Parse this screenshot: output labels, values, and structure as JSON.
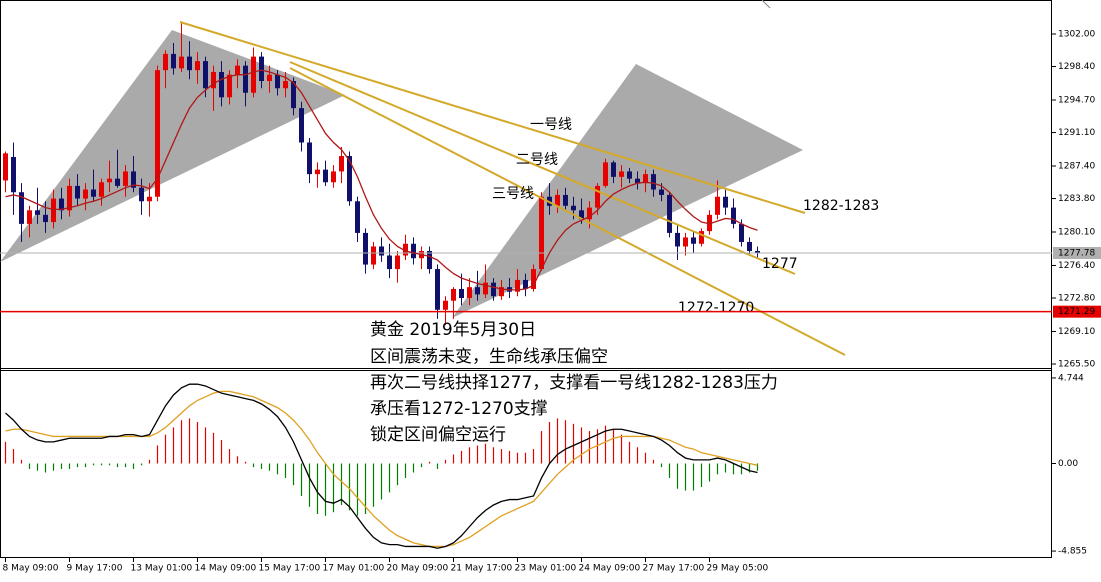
{
  "chart_data": [
    {
      "type": "candlestick",
      "categories": [
        "8 May 09:00",
        null,
        null,
        null,
        null,
        null,
        null,
        null,
        "9 May 17:00",
        null,
        null,
        null,
        null,
        null,
        null,
        null,
        "13 May 01:00",
        null,
        null,
        null,
        null,
        null,
        null,
        null,
        "14 May 09:00",
        null,
        null,
        null,
        null,
        null,
        null,
        null,
        "15 May 17:00",
        null,
        null,
        null,
        null,
        null,
        null,
        null,
        "17 May 01:00",
        null,
        null,
        null,
        null,
        null,
        null,
        null,
        "20 May 09:00",
        null,
        null,
        null,
        null,
        null,
        null,
        null,
        "21 May 17:00",
        null,
        null,
        null,
        null,
        null,
        null,
        null,
        "23 May 01:00",
        null,
        null,
        null,
        null,
        null,
        null,
        null,
        "24 May 09:00",
        null,
        null,
        null,
        null,
        null,
        null,
        null,
        "27 May 17:00",
        null,
        null,
        null,
        null,
        null,
        null,
        null,
        "29 May 05:00",
        null,
        null,
        null,
        null,
        null,
        null
      ],
      "candles": [
        [
          1285.8,
          1289.0,
          1284.5,
          1288.8
        ],
        [
          1288.4,
          1290.0,
          1282.0,
          1284.5
        ],
        [
          1284.5,
          1285.5,
          1279.0,
          1281.0
        ],
        [
          1281.0,
          1283.0,
          1279.5,
          1282.5
        ],
        [
          1282.5,
          1285.0,
          1281.0,
          1282.0
        ],
        [
          1282.0,
          1283.5,
          1280.0,
          1281.2
        ],
        [
          1281.2,
          1284.8,
          1280.5,
          1283.8
        ],
        [
          1283.8,
          1285.0,
          1281.5,
          1282.5
        ],
        [
          1282.5,
          1286.0,
          1281.8,
          1285.2
        ],
        [
          1285.2,
          1286.5,
          1283.0,
          1283.8
        ],
        [
          1283.8,
          1285.5,
          1282.5,
          1284.8
        ],
        [
          1284.8,
          1287.0,
          1283.5,
          1284.0
        ],
        [
          1284.0,
          1286.0,
          1283.0,
          1285.6
        ],
        [
          1285.6,
          1288.0,
          1284.5,
          1286.0
        ],
        [
          1286.0,
          1289.2,
          1285.0,
          1285.2
        ],
        [
          1285.2,
          1287.5,
          1284.0,
          1286.8
        ],
        [
          1286.8,
          1288.5,
          1284.5,
          1285.0
        ],
        [
          1285.0,
          1286.0,
          1282.0,
          1283.5
        ],
        [
          1283.5,
          1285.5,
          1281.8,
          1284.0
        ],
        [
          1284.0,
          1298.5,
          1283.5,
          1298.0
        ],
        [
          1298.0,
          1300.2,
          1296.0,
          1299.8
        ],
        [
          1299.8,
          1301.0,
          1297.5,
          1298.2
        ],
        [
          1298.2,
          1303.3,
          1297.8,
          1299.5
        ],
        [
          1299.5,
          1301.2,
          1297.0,
          1298.0
        ],
        [
          1298.0,
          1300.0,
          1296.5,
          1299.0
        ],
        [
          1299.0,
          1299.5,
          1295.0,
          1296.0
        ],
        [
          1296.0,
          1298.5,
          1293.5,
          1297.8
        ],
        [
          1297.8,
          1299.0,
          1294.0,
          1295.0
        ],
        [
          1295.0,
          1298.0,
          1294.2,
          1297.5
        ],
        [
          1297.5,
          1299.2,
          1296.0,
          1298.5
        ],
        [
          1298.5,
          1299.0,
          1294.0,
          1295.5
        ],
        [
          1295.5,
          1300.5,
          1295.0,
          1299.5
        ],
        [
          1299.5,
          1300.0,
          1296.0,
          1296.8
        ],
        [
          1296.8,
          1298.5,
          1295.5,
          1297.5
        ],
        [
          1297.5,
          1298.0,
          1295.2,
          1296.0
        ],
        [
          1296.0,
          1297.8,
          1295.0,
          1296.8
        ],
        [
          1296.8,
          1297.2,
          1293.0,
          1293.8
        ],
        [
          1293.8,
          1294.5,
          1289.0,
          1290.0
        ],
        [
          1290.0,
          1290.5,
          1285.5,
          1286.5
        ],
        [
          1286.5,
          1287.8,
          1285.0,
          1287.0
        ],
        [
          1287.0,
          1288.0,
          1285.2,
          1285.6
        ],
        [
          1285.6,
          1287.5,
          1285.0,
          1286.8
        ],
        [
          1286.8,
          1289.5,
          1285.5,
          1288.5
        ],
        [
          1288.5,
          1289.0,
          1283.0,
          1283.5
        ],
        [
          1283.5,
          1284.0,
          1279.0,
          1280.0
        ],
        [
          1280.0,
          1280.5,
          1275.5,
          1276.5
        ],
        [
          1276.5,
          1279.0,
          1276.0,
          1278.5
        ],
        [
          1278.5,
          1279.5,
          1276.8,
          1277.5
        ],
        [
          1277.5,
          1278.8,
          1275.0,
          1276.0
        ],
        [
          1276.0,
          1278.0,
          1274.5,
          1277.5
        ],
        [
          1277.5,
          1279.8,
          1277.0,
          1278.8
        ],
        [
          1278.8,
          1279.5,
          1276.5,
          1277.2
        ],
        [
          1277.2,
          1278.5,
          1276.0,
          1278.0
        ],
        [
          1278.0,
          1278.5,
          1275.5,
          1276.0
        ],
        [
          1276.0,
          1276.5,
          1270.5,
          1271.5
        ],
        [
          1271.5,
          1273.0,
          1269.8,
          1272.5
        ],
        [
          1272.5,
          1274.0,
          1270.5,
          1273.8
        ],
        [
          1273.8,
          1275.5,
          1272.0,
          1272.8
        ],
        [
          1272.8,
          1275.0,
          1272.0,
          1274.0
        ],
        [
          1274.0,
          1275.8,
          1272.5,
          1273.2
        ],
        [
          1273.2,
          1276.5,
          1272.8,
          1274.5
        ],
        [
          1274.5,
          1275.0,
          1272.5,
          1273.0
        ],
        [
          1273.0,
          1274.8,
          1272.6,
          1274.0
        ],
        [
          1274.0,
          1275.0,
          1272.8,
          1273.5
        ],
        [
          1273.5,
          1276.0,
          1273.0,
          1274.8
        ],
        [
          1274.8,
          1275.5,
          1273.0,
          1273.8
        ],
        [
          1273.8,
          1276.5,
          1273.5,
          1276.0
        ],
        [
          1276.0,
          1284.5,
          1275.8,
          1284.0
        ],
        [
          1284.0,
          1285.5,
          1282.0,
          1283.0
        ],
        [
          1283.0,
          1284.8,
          1282.2,
          1284.2
        ],
        [
          1284.2,
          1285.0,
          1282.5,
          1283.0
        ],
        [
          1283.0,
          1284.0,
          1281.5,
          1282.5
        ],
        [
          1282.5,
          1283.8,
          1281.0,
          1281.5
        ],
        [
          1281.5,
          1283.5,
          1280.5,
          1282.8
        ],
        [
          1282.8,
          1285.5,
          1282.0,
          1285.2
        ],
        [
          1285.2,
          1288.2,
          1285.0,
          1287.8
        ],
        [
          1287.8,
          1288.0,
          1285.5,
          1286.2
        ],
        [
          1286.2,
          1287.5,
          1285.0,
          1286.8
        ],
        [
          1286.8,
          1287.2,
          1285.5,
          1286.0
        ],
        [
          1286.0,
          1286.8,
          1284.8,
          1285.5
        ],
        [
          1285.5,
          1287.0,
          1284.5,
          1286.5
        ],
        [
          1286.5,
          1287.0,
          1284.0,
          1284.8
        ],
        [
          1284.8,
          1285.5,
          1283.5,
          1284.2
        ],
        [
          1284.2,
          1284.5,
          1279.5,
          1280.0
        ],
        [
          1280.0,
          1281.0,
          1277.0,
          1278.5
        ],
        [
          1278.5,
          1280.0,
          1277.5,
          1279.5
        ],
        [
          1279.5,
          1280.2,
          1277.8,
          1278.8
        ],
        [
          1278.8,
          1280.5,
          1278.5,
          1280.2
        ],
        [
          1280.2,
          1282.5,
          1279.8,
          1282.0
        ],
        [
          1282.0,
          1285.8,
          1281.5,
          1284.0
        ],
        [
          1284.0,
          1285.0,
          1282.0,
          1282.8
        ],
        [
          1282.8,
          1283.8,
          1280.5,
          1281.0
        ],
        [
          1281.0,
          1281.5,
          1278.5,
          1279.0
        ],
        [
          1279.0,
          1279.5,
          1277.5,
          1278.0
        ],
        [
          1278.0,
          1278.5,
          1277.2,
          1277.8
        ]
      ],
      "ma_values": [
        1284.0,
        1284.2,
        1284.0,
        1283.6,
        1283.2,
        1282.8,
        1282.6,
        1282.6,
        1282.8,
        1283.0,
        1283.3,
        1283.5,
        1283.8,
        1284.2,
        1284.6,
        1285.0,
        1285.3,
        1285.2,
        1284.9,
        1286.0,
        1288.0,
        1290.0,
        1292.0,
        1293.8,
        1295.0,
        1295.8,
        1296.5,
        1297.0,
        1297.3,
        1297.5,
        1297.5,
        1297.8,
        1298.0,
        1297.8,
        1297.5,
        1297.2,
        1296.6,
        1295.5,
        1294.0,
        1292.5,
        1291.0,
        1290.0,
        1289.2,
        1288.0,
        1286.2,
        1284.0,
        1282.0,
        1280.5,
        1279.3,
        1278.5,
        1278.0,
        1277.8,
        1277.6,
        1277.4,
        1277.0,
        1276.2,
        1275.5,
        1275.0,
        1274.7,
        1274.4,
        1274.2,
        1274.0,
        1273.8,
        1273.7,
        1273.7,
        1273.8,
        1274.2,
        1276.0,
        1277.8,
        1279.2,
        1280.3,
        1281.0,
        1281.4,
        1281.8,
        1282.5,
        1283.5,
        1284.3,
        1284.8,
        1285.2,
        1285.5,
        1285.6,
        1285.5,
        1285.2,
        1284.5,
        1283.5,
        1282.6,
        1281.8,
        1281.2,
        1281.0,
        1281.3,
        1281.6,
        1281.5,
        1281.0,
        1280.6,
        1280.3
      ],
      "up_color": "#e60000",
      "down_color": "#10106b",
      "ma_color": "#b01818",
      "ylim": [
        1265.06,
        1305.76
      ],
      "yticks": [
        {
          "value": 1302,
          "label": "1302.00"
        },
        {
          "value": 1298.4,
          "label": "1298.40"
        },
        {
          "value": 1294.7,
          "label": "1294.70"
        },
        {
          "value": 1291.1,
          "label": "1291.10"
        },
        {
          "value": 1287.4,
          "label": "1287.40"
        },
        {
          "value": 1283.8,
          "label": "1283.80"
        },
        {
          "value": 1280.1,
          "label": "1280.10"
        },
        {
          "value": 1276.4,
          "label": "1276.40"
        },
        {
          "value": 1272.8,
          "label": "1272.80"
        },
        {
          "value": 1269.1,
          "label": "1269.10"
        },
        {
          "value": 1265.5,
          "label": "1265.50"
        }
      ],
      "price_lines": [
        1277.78,
        1271.29
      ],
      "price_line_colors": [
        "#b0b0b0",
        "#e60000"
      ],
      "line_labels": [
        "一号线",
        "二号线",
        "三号线"
      ],
      "level_labels": [
        "1282-1283",
        "1277",
        "1272-1270"
      ],
      "note_lines": [
        "黄金 2019年5月30日",
        "区间震荡未变，生命线承压偏空",
        "再次二号线抉择1277，支撑看一号线1282-1283压力",
        "承压看1272-1270支撑",
        "锁定区间偏空运行"
      ]
    },
    {
      "type": "macd",
      "histogram": [
        1.2,
        0.8,
        0.2,
        -0.3,
        -0.4,
        -0.5,
        -0.4,
        -0.3,
        -0.3,
        -0.2,
        -0.2,
        -0.1,
        -0.1,
        -0.1,
        -0.2,
        -0.2,
        -0.3,
        -0.1,
        0.2,
        1.0,
        1.6,
        2.0,
        2.4,
        2.5,
        2.3,
        2.0,
        1.7,
        1.3,
        0.8,
        0.4,
        0.1,
        -0.2,
        -0.3,
        -0.4,
        -0.6,
        -0.8,
        -1.2,
        -1.8,
        -2.4,
        -2.8,
        -2.9,
        -2.7,
        -2.3,
        -2.6,
        -2.9,
        -2.8,
        -2.4,
        -2.0,
        -1.6,
        -1.2,
        -0.8,
        -0.5,
        -0.2,
        0.1,
        -0.3,
        0.2,
        0.5,
        0.7,
        0.9,
        1.0,
        1.1,
        0.9,
        0.8,
        0.7,
        0.6,
        0.6,
        0.8,
        1.8,
        2.3,
        2.5,
        2.4,
        2.2,
        2.0,
        1.8,
        1.9,
        2.1,
        1.9,
        1.6,
        1.2,
        0.9,
        0.6,
        0.2,
        -0.2,
        -0.8,
        -1.4,
        -1.5,
        -1.5,
        -1.3,
        -1.0,
        -0.6,
        -0.5,
        -0.6,
        -0.6,
        -0.5,
        -0.4
      ],
      "macd": [
        2.8,
        2.4,
        1.9,
        1.5,
        1.3,
        1.2,
        1.2,
        1.3,
        1.4,
        1.4,
        1.4,
        1.4,
        1.4,
        1.5,
        1.5,
        1.6,
        1.6,
        1.5,
        1.6,
        2.4,
        3.2,
        3.8,
        4.2,
        4.4,
        4.4,
        4.3,
        4.1,
        3.9,
        3.8,
        3.7,
        3.6,
        3.5,
        3.3,
        3.0,
        2.6,
        2.0,
        1.2,
        0.2,
        -0.8,
        -1.6,
        -2.1,
        -2.2,
        -2.0,
        -2.4,
        -3.0,
        -3.6,
        -4.1,
        -4.4,
        -4.5,
        -4.5,
        -4.6,
        -4.6,
        -4.6,
        -4.6,
        -4.7,
        -4.6,
        -4.4,
        -4.0,
        -3.5,
        -3.0,
        -2.6,
        -2.3,
        -2.1,
        -2.0,
        -2.0,
        -1.9,
        -1.8,
        -0.8,
        0.0,
        0.5,
        0.8,
        1.0,
        1.2,
        1.4,
        1.6,
        1.8,
        1.9,
        1.9,
        1.8,
        1.7,
        1.6,
        1.5,
        1.3,
        1.0,
        0.6,
        0.3,
        0.2,
        0.2,
        0.2,
        0.3,
        0.2,
        0.0,
        -0.2,
        -0.4,
        -0.5
      ],
      "signal": [
        1.8,
        1.9,
        1.9,
        1.8,
        1.7,
        1.6,
        1.5,
        1.5,
        1.5,
        1.5,
        1.5,
        1.5,
        1.5,
        1.5,
        1.5,
        1.5,
        1.5,
        1.5,
        1.5,
        1.7,
        2.0,
        2.4,
        2.8,
        3.2,
        3.5,
        3.7,
        3.9,
        4.0,
        4.0,
        3.9,
        3.8,
        3.7,
        3.5,
        3.3,
        3.1,
        2.8,
        2.4,
        1.9,
        1.3,
        0.6,
        0.0,
        -0.6,
        -1.0,
        -1.4,
        -1.9,
        -2.4,
        -2.9,
        -3.3,
        -3.7,
        -4.0,
        -4.2,
        -4.4,
        -4.5,
        -4.6,
        -4.6,
        -4.6,
        -4.5,
        -4.3,
        -4.1,
        -3.8,
        -3.5,
        -3.2,
        -2.9,
        -2.7,
        -2.5,
        -2.3,
        -2.1,
        -1.6,
        -1.1,
        -0.6,
        -0.2,
        0.2,
        0.5,
        0.8,
        1.0,
        1.2,
        1.4,
        1.5,
        1.5,
        1.5,
        1.5,
        1.5,
        1.4,
        1.3,
        1.1,
        0.9,
        0.8,
        0.6,
        0.5,
        0.4,
        0.3,
        0.2,
        0.1,
        0.0,
        -0.1
      ],
      "positive_color": "#e60000",
      "negative_color": "#008000",
      "macd_color": "#000000",
      "signal_color": "#e0a020",
      "ylim": [
        -5.24,
        5.13
      ],
      "yticks": [
        4.744,
        {
          "value": 0,
          "label": "0.00"
        },
        -4.855
      ]
    }
  ]
}
